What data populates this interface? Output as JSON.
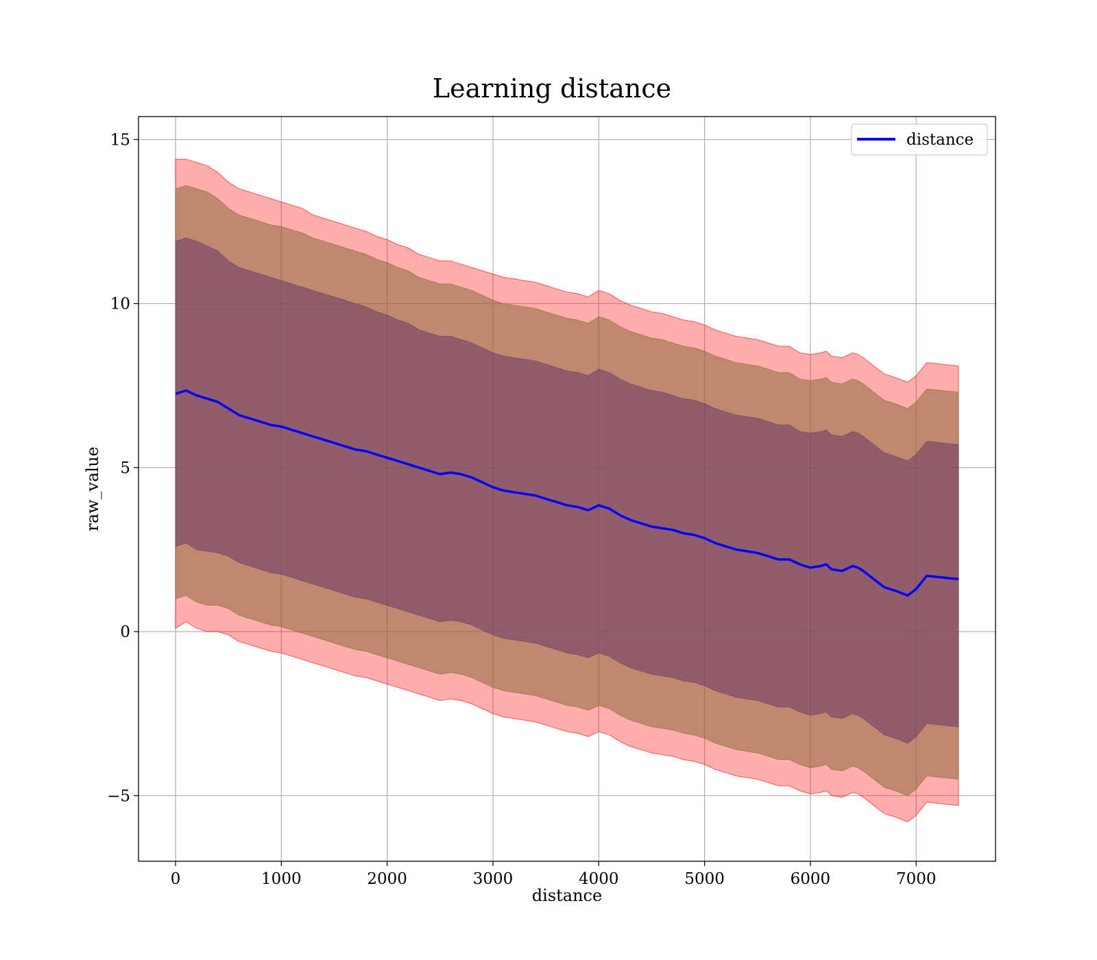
{
  "chart_data": {
    "type": "line",
    "title": "Learning distance",
    "xlabel": "distance",
    "ylabel": "raw_value",
    "xlim": [
      -350,
      7750
    ],
    "ylim": [
      -7,
      15.7
    ],
    "xticks": [
      0,
      1000,
      2000,
      3000,
      4000,
      5000,
      6000,
      7000
    ],
    "xtick_labels": [
      "0",
      "1000",
      "2000",
      "3000",
      "4000",
      "5000",
      "6000",
      "7000"
    ],
    "yticks": [
      -5,
      0,
      5,
      10,
      15
    ],
    "ytick_labels": [
      "−5",
      "0",
      "5",
      "10",
      "15"
    ],
    "grid": true,
    "legend": {
      "position": "top-right",
      "entries": [
        "distance"
      ]
    },
    "colors": {
      "line": "#0000ff",
      "band_outer": "#ff0000",
      "band_middle": "#8c6a3a",
      "band_inner": "#6a3a6a"
    },
    "series": [
      {
        "name": "distance",
        "kind": "line",
        "x": [
          0,
          100,
          200,
          300,
          400,
          500,
          600,
          700,
          800,
          900,
          1000,
          1100,
          1200,
          1300,
          1400,
          1500,
          1600,
          1700,
          1800,
          1900,
          2000,
          2100,
          2200,
          2300,
          2400,
          2500,
          2600,
          2700,
          2800,
          2900,
          3000,
          3100,
          3200,
          3300,
          3400,
          3500,
          3600,
          3700,
          3800,
          3900,
          4000,
          4100,
          4200,
          4300,
          4400,
          4500,
          4600,
          4700,
          4800,
          4900,
          5000,
          5100,
          5200,
          5300,
          5400,
          5500,
          5600,
          5700,
          5800,
          5900,
          6000,
          6100,
          6150,
          6200,
          6300,
          6400,
          6450,
          6500,
          6600,
          6700,
          6800,
          6920,
          7000,
          7100,
          7400
        ],
        "y": [
          7.25,
          7.35,
          7.2,
          7.1,
          7.0,
          6.8,
          6.6,
          6.5,
          6.4,
          6.3,
          6.25,
          6.15,
          6.05,
          5.95,
          5.85,
          5.75,
          5.65,
          5.55,
          5.5,
          5.4,
          5.3,
          5.2,
          5.1,
          5.0,
          4.9,
          4.8,
          4.85,
          4.8,
          4.7,
          4.55,
          4.4,
          4.3,
          4.25,
          4.2,
          4.15,
          4.05,
          3.95,
          3.85,
          3.8,
          3.7,
          3.85,
          3.75,
          3.55,
          3.4,
          3.3,
          3.2,
          3.15,
          3.1,
          3.0,
          2.95,
          2.85,
          2.7,
          2.6,
          2.5,
          2.45,
          2.4,
          2.3,
          2.2,
          2.2,
          2.05,
          1.95,
          2.0,
          2.05,
          1.9,
          1.85,
          2.0,
          1.95,
          1.85,
          1.6,
          1.35,
          1.25,
          1.1,
          1.3,
          1.7,
          1.6
        ]
      },
      {
        "name": "",
        "kind": "band",
        "level": "outer",
        "x": [
          0,
          100,
          200,
          300,
          400,
          500,
          600,
          700,
          800,
          900,
          1000,
          1100,
          1200,
          1300,
          1400,
          1500,
          1600,
          1700,
          1800,
          1900,
          2000,
          2100,
          2200,
          2300,
          2400,
          2500,
          2600,
          2700,
          2800,
          2900,
          3000,
          3100,
          3200,
          3300,
          3400,
          3500,
          3600,
          3700,
          3800,
          3900,
          4000,
          4100,
          4200,
          4300,
          4400,
          4500,
          4600,
          4700,
          4800,
          4900,
          5000,
          5100,
          5200,
          5300,
          5400,
          5500,
          5600,
          5700,
          5800,
          5900,
          6000,
          6100,
          6150,
          6200,
          6300,
          6400,
          6450,
          6500,
          6600,
          6700,
          6800,
          6920,
          7000,
          7100,
          7400
        ],
        "upper": [
          14.4,
          14.4,
          14.3,
          14.2,
          14.0,
          13.7,
          13.5,
          13.4,
          13.3,
          13.2,
          13.1,
          13.0,
          12.9,
          12.7,
          12.6,
          12.5,
          12.4,
          12.3,
          12.2,
          12.05,
          11.95,
          11.8,
          11.7,
          11.5,
          11.4,
          11.3,
          11.3,
          11.2,
          11.1,
          11.0,
          10.9,
          10.8,
          10.75,
          10.7,
          10.65,
          10.55,
          10.45,
          10.35,
          10.3,
          10.2,
          10.4,
          10.3,
          10.1,
          9.95,
          9.85,
          9.75,
          9.7,
          9.6,
          9.5,
          9.45,
          9.35,
          9.2,
          9.1,
          9.0,
          8.95,
          8.9,
          8.8,
          8.7,
          8.7,
          8.5,
          8.45,
          8.5,
          8.55,
          8.4,
          8.35,
          8.5,
          8.45,
          8.35,
          8.1,
          7.85,
          7.75,
          7.6,
          7.8,
          8.2,
          8.1
        ],
        "lower": [
          0.1,
          0.3,
          0.1,
          0.0,
          -0.0,
          -0.1,
          -0.3,
          -0.4,
          -0.5,
          -0.6,
          -0.65,
          -0.75,
          -0.85,
          -0.95,
          -1.05,
          -1.15,
          -1.25,
          -1.35,
          -1.4,
          -1.5,
          -1.6,
          -1.7,
          -1.8,
          -1.9,
          -2.0,
          -2.1,
          -2.05,
          -2.1,
          -2.2,
          -2.35,
          -2.5,
          -2.6,
          -2.65,
          -2.7,
          -2.75,
          -2.85,
          -2.95,
          -3.05,
          -3.1,
          -3.2,
          -3.05,
          -3.15,
          -3.35,
          -3.5,
          -3.6,
          -3.7,
          -3.75,
          -3.8,
          -3.9,
          -3.95,
          -4.05,
          -4.2,
          -4.3,
          -4.4,
          -4.45,
          -4.5,
          -4.6,
          -4.7,
          -4.7,
          -4.85,
          -4.95,
          -4.9,
          -4.85,
          -5.0,
          -5.05,
          -4.9,
          -4.95,
          -5.05,
          -5.3,
          -5.55,
          -5.65,
          -5.8,
          -5.6,
          -5.2,
          -5.3
        ]
      },
      {
        "name": "",
        "kind": "band",
        "level": "middle",
        "x": [
          0,
          100,
          200,
          300,
          400,
          500,
          600,
          700,
          800,
          900,
          1000,
          1100,
          1200,
          1300,
          1400,
          1500,
          1600,
          1700,
          1800,
          1900,
          2000,
          2100,
          2200,
          2300,
          2400,
          2500,
          2600,
          2700,
          2800,
          2900,
          3000,
          3100,
          3200,
          3300,
          3400,
          3500,
          3600,
          3700,
          3800,
          3900,
          4000,
          4100,
          4200,
          4300,
          4400,
          4500,
          4600,
          4700,
          4800,
          4900,
          5000,
          5100,
          5200,
          5300,
          5400,
          5500,
          5600,
          5700,
          5800,
          5900,
          6000,
          6100,
          6150,
          6200,
          6300,
          6400,
          6450,
          6500,
          6600,
          6700,
          6800,
          6920,
          7000,
          7100,
          7400
        ],
        "upper": [
          13.5,
          13.6,
          13.5,
          13.4,
          13.2,
          12.9,
          12.7,
          12.6,
          12.5,
          12.4,
          12.35,
          12.25,
          12.15,
          12.0,
          11.9,
          11.8,
          11.7,
          11.6,
          11.5,
          11.35,
          11.25,
          11.1,
          11.0,
          10.8,
          10.7,
          10.6,
          10.6,
          10.5,
          10.4,
          10.25,
          10.1,
          10.0,
          9.95,
          9.9,
          9.85,
          9.75,
          9.65,
          9.55,
          9.5,
          9.4,
          9.6,
          9.5,
          9.3,
          9.15,
          9.05,
          8.95,
          8.9,
          8.8,
          8.7,
          8.65,
          8.55,
          8.4,
          8.3,
          8.2,
          8.15,
          8.1,
          8.0,
          7.9,
          7.9,
          7.7,
          7.65,
          7.7,
          7.75,
          7.6,
          7.55,
          7.7,
          7.65,
          7.55,
          7.3,
          7.05,
          6.95,
          6.8,
          7.0,
          7.4,
          7.3
        ],
        "lower": [
          1.0,
          1.1,
          0.9,
          0.8,
          0.8,
          0.7,
          0.5,
          0.4,
          0.3,
          0.2,
          0.15,
          0.05,
          -0.05,
          -0.15,
          -0.25,
          -0.35,
          -0.45,
          -0.55,
          -0.6,
          -0.7,
          -0.8,
          -0.9,
          -1.0,
          -1.1,
          -1.2,
          -1.3,
          -1.25,
          -1.3,
          -1.4,
          -1.55,
          -1.7,
          -1.8,
          -1.85,
          -1.9,
          -1.95,
          -2.05,
          -2.15,
          -2.25,
          -2.3,
          -2.4,
          -2.25,
          -2.35,
          -2.55,
          -2.7,
          -2.8,
          -2.9,
          -2.95,
          -3.0,
          -3.1,
          -3.15,
          -3.25,
          -3.4,
          -3.5,
          -3.6,
          -3.65,
          -3.7,
          -3.8,
          -3.9,
          -3.9,
          -4.05,
          -4.15,
          -4.1,
          -4.05,
          -4.2,
          -4.25,
          -4.1,
          -4.15,
          -4.25,
          -4.5,
          -4.75,
          -4.85,
          -5.0,
          -4.8,
          -4.4,
          -4.5
        ]
      },
      {
        "name": "",
        "kind": "band",
        "level": "inner",
        "x": [
          0,
          100,
          200,
          300,
          400,
          500,
          600,
          700,
          800,
          900,
          1000,
          1100,
          1200,
          1300,
          1400,
          1500,
          1600,
          1700,
          1800,
          1900,
          2000,
          2100,
          2200,
          2300,
          2400,
          2500,
          2600,
          2700,
          2800,
          2900,
          3000,
          3100,
          3200,
          3300,
          3400,
          3500,
          3600,
          3700,
          3800,
          3900,
          4000,
          4100,
          4200,
          4300,
          4400,
          4500,
          4600,
          4700,
          4800,
          4900,
          5000,
          5100,
          5200,
          5300,
          5400,
          5500,
          5600,
          5700,
          5800,
          5900,
          6000,
          6100,
          6150,
          6200,
          6300,
          6400,
          6450,
          6500,
          6600,
          6700,
          6800,
          6920,
          7000,
          7100,
          7400
        ],
        "upper": [
          11.9,
          12.0,
          11.9,
          11.75,
          11.6,
          11.3,
          11.1,
          11.0,
          10.9,
          10.8,
          10.7,
          10.6,
          10.5,
          10.4,
          10.3,
          10.2,
          10.1,
          10.0,
          9.9,
          9.75,
          9.65,
          9.5,
          9.4,
          9.2,
          9.1,
          9.0,
          9.0,
          8.9,
          8.8,
          8.65,
          8.5,
          8.4,
          8.35,
          8.3,
          8.25,
          8.15,
          8.05,
          7.95,
          7.9,
          7.8,
          8.0,
          7.9,
          7.7,
          7.55,
          7.45,
          7.35,
          7.3,
          7.2,
          7.1,
          7.05,
          6.95,
          6.8,
          6.7,
          6.6,
          6.55,
          6.5,
          6.4,
          6.3,
          6.3,
          6.1,
          6.05,
          6.1,
          6.15,
          6.0,
          5.95,
          6.1,
          6.05,
          5.95,
          5.7,
          5.45,
          5.35,
          5.2,
          5.4,
          5.8,
          5.7
        ],
        "lower": [
          2.6,
          2.7,
          2.5,
          2.45,
          2.4,
          2.3,
          2.1,
          2.0,
          1.9,
          1.8,
          1.75,
          1.65,
          1.55,
          1.45,
          1.35,
          1.25,
          1.15,
          1.05,
          1.0,
          0.9,
          0.8,
          0.7,
          0.6,
          0.5,
          0.4,
          0.3,
          0.35,
          0.3,
          0.2,
          0.05,
          -0.1,
          -0.2,
          -0.25,
          -0.3,
          -0.35,
          -0.45,
          -0.55,
          -0.65,
          -0.7,
          -0.8,
          -0.65,
          -0.75,
          -0.95,
          -1.1,
          -1.2,
          -1.3,
          -1.35,
          -1.4,
          -1.5,
          -1.55,
          -1.65,
          -1.8,
          -1.9,
          -2.0,
          -2.05,
          -2.1,
          -2.2,
          -2.3,
          -2.3,
          -2.45,
          -2.55,
          -2.5,
          -2.45,
          -2.6,
          -2.65,
          -2.5,
          -2.55,
          -2.65,
          -2.9,
          -3.15,
          -3.25,
          -3.4,
          -3.2,
          -2.8,
          -2.9
        ]
      }
    ]
  }
}
